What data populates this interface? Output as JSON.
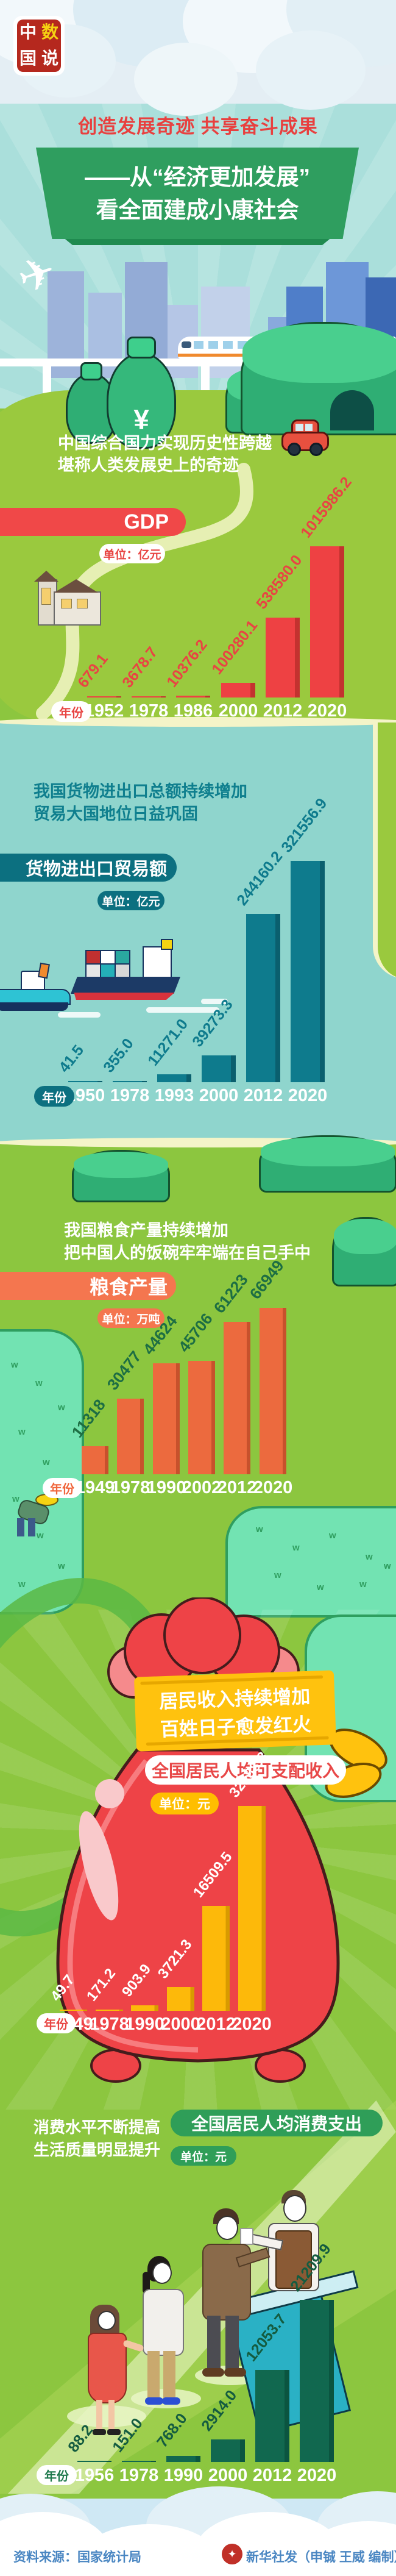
{
  "page": {
    "logo": {
      "chars": [
        "中",
        "数",
        "国",
        "说"
      ]
    },
    "title": "创造发展奇迹  共享奋斗成果",
    "banner": {
      "line1": "——从“经济更加发展”",
      "line2": "看全面建成小康社会"
    }
  },
  "icons": {
    "plane": "✈",
    "yuan": "¥",
    "xinhua": "✦",
    "grass": "w"
  },
  "sections": {
    "gdp": {
      "intro1": "中国综合国力实现历史性跨越",
      "intro2": "堪称人类发展史上的奇迹"
    },
    "trade": {
      "intro1": "我国货物进出口总额持续增加",
      "intro2": "贸易大国地位日益巩固"
    },
    "grain": {
      "intro1": "我国粮食产量持续增加",
      "intro2": "把中国人的饭碗牢牢端在自己手中"
    },
    "income": {
      "banner1": "居民收入持续增加",
      "banner2": "百姓日子愈发红火"
    },
    "consumption": {
      "intro1": "消费水平不断提高",
      "intro2": "生活质量明显提升"
    }
  },
  "chart_data": [
    {
      "type": "bar",
      "id": "gdp",
      "title": "GDP",
      "unit": "单位：亿元",
      "xlabel": "年份",
      "categories": [
        "1952",
        "1978",
        "1986",
        "2000",
        "2012",
        "2020"
      ],
      "values": [
        679.1,
        3678.7,
        10376.2,
        100280.1,
        538580.0,
        1015986.2
      ],
      "value_labels": [
        "679.1",
        "3678.7",
        "10376.2",
        "100280.1",
        "538580.0",
        "1015986.2"
      ],
      "ylim": [
        0,
        1015986.2
      ],
      "grid": false,
      "colors": {
        "bar": "#ee4143",
        "edge": "#c3322f",
        "value": "#e84543",
        "year": "#ffffff",
        "pill_bg": "#ffffff",
        "pill_text": "#e84543"
      }
    },
    {
      "type": "bar",
      "id": "trade",
      "title": "货物进出口贸易额",
      "unit": "单位：亿元",
      "xlabel": "年份",
      "categories": [
        "1950",
        "1978",
        "1993",
        "2000",
        "2012",
        "2020"
      ],
      "values": [
        41.5,
        355.0,
        11271.0,
        39273.3,
        244160.2,
        321556.9
      ],
      "value_labels": [
        "41.5",
        "355.0",
        "11271.0",
        "39273.3",
        "244160.2",
        "321556.9"
      ],
      "ylim": [
        0,
        321556.9
      ],
      "grid": false,
      "colors": {
        "bar": "#0e7b8d",
        "edge": "#0a5f6e",
        "value": "#0e7b8d",
        "year": "#ffffff",
        "pill_bg": "#0c7080",
        "pill_text": "#ffffff"
      }
    },
    {
      "type": "bar",
      "id": "grain",
      "title": "粮食产量",
      "unit": "单位：万吨",
      "xlabel": "年份",
      "categories": [
        "1949",
        "1978",
        "1990",
        "2002",
        "2012",
        "2020"
      ],
      "values": [
        11318,
        30477,
        44624,
        45706,
        61223,
        66949
      ],
      "value_labels": [
        "11318",
        "30477",
        "44624",
        "45706",
        "61223",
        "66949"
      ],
      "ylim": [
        0,
        66949
      ],
      "grid": false,
      "colors": {
        "bar": "#ec6a3e",
        "edge": "#c7512c",
        "value": "#1d6e43",
        "year": "#ffffff",
        "pill_bg": "#ffffff",
        "pill_text": "#f0663c"
      }
    },
    {
      "type": "bar",
      "id": "income",
      "title": "全国居民人均可支配收入",
      "unit": "单位：元",
      "xlabel": "年份",
      "categories": [
        "1949",
        "1978",
        "1990",
        "2000",
        "2012",
        "2020"
      ],
      "values": [
        49.7,
        171.2,
        903.9,
        3721.3,
        16509.5,
        32188.8
      ],
      "value_labels": [
        "49.7",
        "171.2",
        "903.9",
        "3721.3",
        "16509.5",
        "32188.8"
      ],
      "ylim": [
        0,
        32188.8
      ],
      "grid": false,
      "colors": {
        "bar": "#fdb90a",
        "edge": "#d89b00",
        "value": "#ffffff",
        "year": "#ffffff",
        "pill_bg": "#ffffff",
        "pill_text": "#e84543"
      }
    },
    {
      "type": "bar",
      "id": "consumption",
      "title": "全国居民人均消费支出",
      "unit": "单位：元",
      "xlabel": "年份",
      "categories": [
        "1956",
        "1978",
        "1990",
        "2000",
        "2012",
        "2020"
      ],
      "values": [
        88.2,
        151.0,
        768.0,
        2914.0,
        12053.7,
        21209.9
      ],
      "value_labels": [
        "88.2",
        "151.0",
        "768.0",
        "2914.0",
        "12053.7",
        "21209.9"
      ],
      "ylim": [
        0,
        21209.9
      ],
      "grid": false,
      "colors": {
        "bar": "#11684f",
        "edge": "#0b5540",
        "value": "#145c40",
        "year": "#ffffff",
        "pill_bg": "#ffffff",
        "pill_text": "#1f7a4d"
      }
    }
  ],
  "footer": {
    "source": "资料来源：国家统计局",
    "credit": "新华社发（申铖 王威 编制）"
  }
}
